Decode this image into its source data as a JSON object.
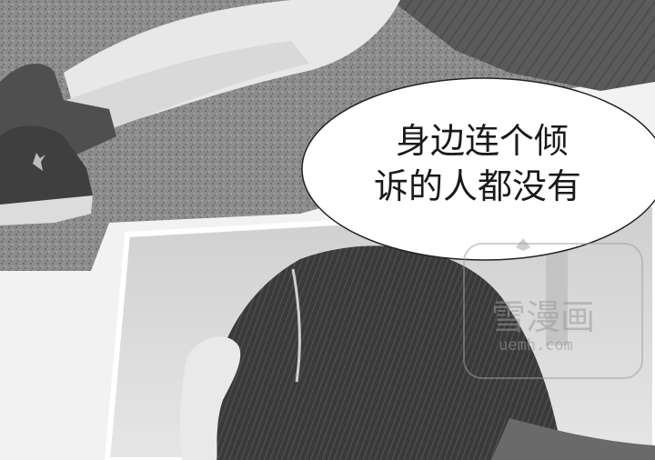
{
  "speech_bubble": {
    "line1": "身边连个倾",
    "line2": "诉的人都没有"
  },
  "watermark": {
    "title": "雪漫画",
    "url": "uemh.com"
  },
  "colors": {
    "page_bg": "#f2f2f2",
    "ground": "#8c8c8c",
    "bubble_fill": "#ffffff",
    "text": "#1a1a1a"
  }
}
